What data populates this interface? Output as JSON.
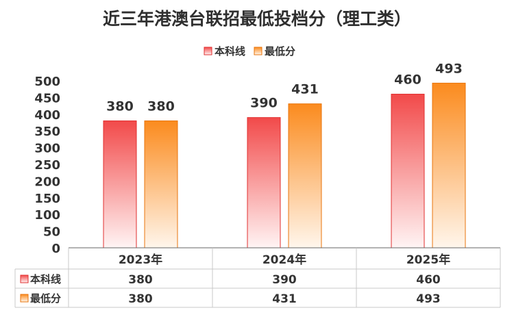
{
  "title": "近三年港澳台联招最低投档分（理工类）",
  "chart_data": {
    "type": "bar",
    "categories": [
      "2023年",
      "2024年",
      "2025年"
    ],
    "series": [
      {
        "name": "本科线",
        "values": [
          380,
          390,
          460
        ]
      },
      {
        "name": "最低分",
        "values": [
          380,
          431,
          493
        ]
      }
    ],
    "ylim": [
      0,
      500
    ],
    "yticks": [
      0,
      50,
      100,
      150,
      200,
      250,
      300,
      350,
      400,
      450,
      500
    ],
    "legend_position": "top-center",
    "grid": false,
    "data_table": true
  },
  "colors": {
    "series_0_top": "#f24a4a",
    "series_0_bottom": "#fff4f4",
    "series_0_edge": "#e02f2f",
    "series_1_top": "#fb8b1e",
    "series_1_bottom": "#fff6ec",
    "series_1_edge": "#e8740c",
    "axis": "#666666",
    "table_border": "#c8c8c8"
  }
}
